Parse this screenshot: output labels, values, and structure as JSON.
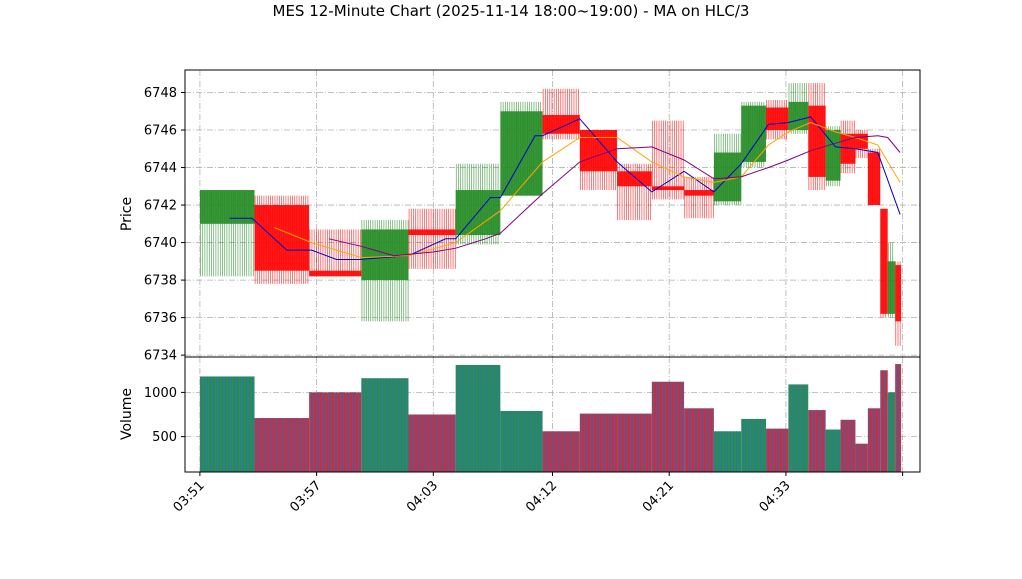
{
  "chart_data": {
    "type": "candlestick",
    "title": "MES 12-Minute Chart (2025-11-14 18:00~19:00) - MA on HLC/3",
    "price_panel": {
      "ylabel": "Price",
      "ylim": [
        6733.9,
        6749.2
      ],
      "yticks": [
        6734,
        6736,
        6738,
        6740,
        6742,
        6744,
        6746,
        6748
      ],
      "grid": true
    },
    "volume_panel": {
      "ylabel": "Volume",
      "ylim": [
        100,
        1400
      ],
      "yticks": [
        500,
        1000
      ],
      "grid": true
    },
    "xlabel": "",
    "xlim": [
      -0.3,
      14.5
    ],
    "xticks": [
      {
        "x": 0,
        "label": "03:51"
      },
      {
        "x": 2.35,
        "label": "03:57"
      },
      {
        "x": 4.7,
        "label": "04:03"
      },
      {
        "x": 7.1,
        "label": "04:12"
      },
      {
        "x": 9.45,
        "label": "04:21"
      },
      {
        "x": 11.8,
        "label": "04:33"
      },
      {
        "x": 14.15,
        "label": ""
      }
    ],
    "candles": [
      {
        "start": 0.0,
        "end": 1.1,
        "open": 6741.0,
        "high": 6742.8,
        "low": 6738.2,
        "close": 6742.8,
        "volume": 1180
      },
      {
        "start": 1.1,
        "end": 2.2,
        "open": 6742.0,
        "high": 6742.5,
        "low": 6737.8,
        "close": 6738.5,
        "volume": 710
      },
      {
        "start": 2.2,
        "end": 3.25,
        "open": 6738.5,
        "high": 6740.7,
        "low": 6738.2,
        "close": 6738.2,
        "volume": 1000
      },
      {
        "start": 3.25,
        "end": 4.2,
        "open": 6738.0,
        "high": 6741.2,
        "low": 6735.8,
        "close": 6740.7,
        "volume": 1160
      },
      {
        "start": 4.2,
        "end": 5.15,
        "open": 6740.7,
        "high": 6741.8,
        "low": 6738.6,
        "close": 6740.4,
        "volume": 750
      },
      {
        "start": 5.15,
        "end": 6.05,
        "open": 6740.4,
        "high": 6744.2,
        "low": 6739.9,
        "close": 6742.8,
        "volume": 1310
      },
      {
        "start": 6.05,
        "end": 6.9,
        "open": 6742.5,
        "high": 6747.5,
        "low": 6742.5,
        "close": 6747.0,
        "volume": 790
      },
      {
        "start": 6.9,
        "end": 7.65,
        "open": 6746.8,
        "high": 6748.2,
        "low": 6745.5,
        "close": 6745.8,
        "volume": 560
      },
      {
        "start": 7.65,
        "end": 8.4,
        "open": 6746.0,
        "high": 6746.0,
        "low": 6742.8,
        "close": 6743.8,
        "volume": 760
      },
      {
        "start": 8.4,
        "end": 9.1,
        "open": 6743.8,
        "high": 6744.2,
        "low": 6741.2,
        "close": 6743.0,
        "volume": 760
      },
      {
        "start": 9.1,
        "end": 9.75,
        "open": 6743.0,
        "high": 6746.5,
        "low": 6742.3,
        "close": 6742.8,
        "volume": 1120
      },
      {
        "start": 9.75,
        "end": 10.35,
        "open": 6742.8,
        "high": 6743.5,
        "low": 6741.3,
        "close": 6742.5,
        "volume": 820
      },
      {
        "start": 10.35,
        "end": 10.9,
        "open": 6742.2,
        "high": 6745.8,
        "low": 6742.0,
        "close": 6744.8,
        "volume": 560
      },
      {
        "start": 10.9,
        "end": 11.4,
        "open": 6744.3,
        "high": 6747.5,
        "low": 6744.0,
        "close": 6747.3,
        "volume": 700
      },
      {
        "start": 11.4,
        "end": 11.85,
        "open": 6747.2,
        "high": 6747.6,
        "low": 6745.5,
        "close": 6746.0,
        "volume": 590
      },
      {
        "start": 11.85,
        "end": 12.25,
        "open": 6746.0,
        "high": 6748.5,
        "low": 6745.8,
        "close": 6747.5,
        "volume": 1090
      },
      {
        "start": 12.25,
        "end": 12.6,
        "open": 6747.3,
        "high": 6748.5,
        "low": 6742.8,
        "close": 6743.5,
        "volume": 800
      },
      {
        "start": 12.6,
        "end": 12.9,
        "open": 6743.3,
        "high": 6746.2,
        "low": 6743.0,
        "close": 6746.0,
        "volume": 580
      },
      {
        "start": 12.9,
        "end": 13.2,
        "open": 6745.8,
        "high": 6746.5,
        "low": 6743.7,
        "close": 6744.2,
        "volume": 690
      },
      {
        "start": 13.2,
        "end": 13.45,
        "open": 6745.8,
        "high": 6746.0,
        "low": 6744.5,
        "close": 6745.0,
        "volume": 420
      },
      {
        "start": 13.45,
        "end": 13.7,
        "open": 6744.8,
        "high": 6745.0,
        "low": 6742.0,
        "close": 6742.0,
        "volume": 820
      },
      {
        "start": 13.7,
        "end": 13.85,
        "open": 6741.8,
        "high": 6741.8,
        "low": 6736.0,
        "close": 6736.2,
        "volume": 1250
      },
      {
        "start": 13.85,
        "end": 14.0,
        "open": 6736.2,
        "high": 6740.0,
        "low": 6736.0,
        "close": 6739.0,
        "volume": 1000
      },
      {
        "start": 14.0,
        "end": 14.12,
        "open": 6738.8,
        "high": 6739.0,
        "low": 6734.5,
        "close": 6735.8,
        "volume": 1320
      }
    ],
    "ma_lines": [
      {
        "color": "#0000cc",
        "points": [
          [
            0.6,
            6741.3
          ],
          [
            1.05,
            6741.3
          ],
          [
            1.75,
            6739.6
          ],
          [
            2.25,
            6739.6
          ],
          [
            2.75,
            6739.1
          ],
          [
            3.2,
            6739.1
          ],
          [
            4.2,
            6739.3
          ],
          [
            4.95,
            6740.2
          ],
          [
            5.15,
            6740.2
          ],
          [
            5.85,
            6742.4
          ],
          [
            6.05,
            6742.4
          ],
          [
            6.75,
            6745.7
          ],
          [
            6.9,
            6745.7
          ],
          [
            7.65,
            6746.6
          ],
          [
            8.4,
            6744.3
          ],
          [
            9.1,
            6742.7
          ],
          [
            9.75,
            6743.8
          ],
          [
            10.35,
            6742.7
          ],
          [
            10.9,
            6744.2
          ],
          [
            11.45,
            6746.3
          ],
          [
            11.85,
            6746.4
          ],
          [
            12.3,
            6746.7
          ],
          [
            12.8,
            6745.1
          ],
          [
            13.2,
            6745.0
          ],
          [
            13.65,
            6744.8
          ],
          [
            14.1,
            6741.5
          ]
        ]
      },
      {
        "color": "#ffa500",
        "points": [
          [
            1.5,
            6740.8
          ],
          [
            2.25,
            6740.0
          ],
          [
            3.25,
            6739.2
          ],
          [
            4.2,
            6739.3
          ],
          [
            5.15,
            6740.0
          ],
          [
            6.05,
            6741.7
          ],
          [
            6.9,
            6744.3
          ],
          [
            7.65,
            6745.6
          ],
          [
            8.4,
            6745.6
          ],
          [
            9.1,
            6744.3
          ],
          [
            9.75,
            6743.5
          ],
          [
            10.35,
            6743.2
          ],
          [
            10.9,
            6743.5
          ],
          [
            11.45,
            6745.2
          ],
          [
            11.85,
            6745.9
          ],
          [
            12.3,
            6746.4
          ],
          [
            12.8,
            6745.9
          ],
          [
            13.2,
            6745.6
          ],
          [
            13.65,
            6745.2
          ],
          [
            14.1,
            6743.2
          ]
        ]
      },
      {
        "color": "#800080",
        "points": [
          [
            2.6,
            6740.2
          ],
          [
            3.25,
            6739.8
          ],
          [
            3.9,
            6739.3
          ],
          [
            4.7,
            6739.5
          ],
          [
            5.15,
            6739.7
          ],
          [
            5.75,
            6740.2
          ],
          [
            6.05,
            6740.5
          ],
          [
            6.9,
            6742.6
          ],
          [
            7.65,
            6744.3
          ],
          [
            8.4,
            6745.0
          ],
          [
            9.1,
            6745.1
          ],
          [
            9.75,
            6744.4
          ],
          [
            10.35,
            6743.4
          ],
          [
            10.9,
            6743.5
          ],
          [
            11.45,
            6744.0
          ],
          [
            11.85,
            6744.4
          ],
          [
            12.3,
            6744.9
          ],
          [
            12.8,
            6745.3
          ],
          [
            13.2,
            6745.6
          ],
          [
            13.65,
            6745.7
          ],
          [
            13.85,
            6745.6
          ],
          [
            14.1,
            6744.8
          ]
        ]
      }
    ],
    "colors": {
      "up_candle": "#228b22",
      "down_candle": "#ff0000",
      "grid": "#b0b0b0",
      "volume_green": "#2e8b57",
      "volume_blue": "#1f77b4",
      "volume_red": "#c0304a"
    }
  }
}
